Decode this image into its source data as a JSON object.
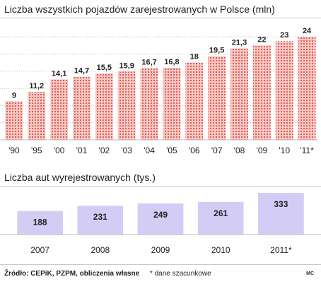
{
  "chart_data": [
    {
      "type": "bar",
      "title": "Liczba wszystkich pojazdów zarejestrowanych w Polsce (mln)",
      "categories": [
        "'90",
        "'95",
        "'00",
        "'01",
        "'02",
        "'03",
        "'04",
        "'05",
        "'06",
        "'07",
        "'08",
        "'09",
        "'10",
        "'11*"
      ],
      "values": [
        9,
        11.2,
        14.1,
        14.7,
        15.5,
        15.9,
        16.7,
        16.8,
        18,
        19.5,
        21.3,
        22,
        23,
        24
      ],
      "value_labels": [
        "9",
        "11,2",
        "14,1",
        "14,7",
        "15,5",
        "15,9",
        "16,7",
        "16,8",
        "18",
        "19,5",
        "21,3",
        "22",
        "23",
        "24"
      ],
      "ylim": [
        0,
        26
      ],
      "grid": true,
      "colors": {
        "bar": "#e23b3b",
        "bar_fill": "#f6c9c3",
        "grid": "#bdbdbd"
      }
    },
    {
      "type": "bar",
      "title": "Liczba aut wyrejestrowanych (tys.)",
      "categories": [
        "2007",
        "2008",
        "2009",
        "2010",
        "2011*"
      ],
      "values": [
        188,
        231,
        249,
        261,
        333
      ],
      "ylim": [
        0,
        350
      ],
      "grid": false,
      "colors": {
        "bar": "#d3cdf6"
      }
    }
  ],
  "footer": {
    "source": "Źródło: CEPiK, PZPM, obliczenia własne",
    "note": "* dane szacunkowe",
    "credit": "MC"
  }
}
